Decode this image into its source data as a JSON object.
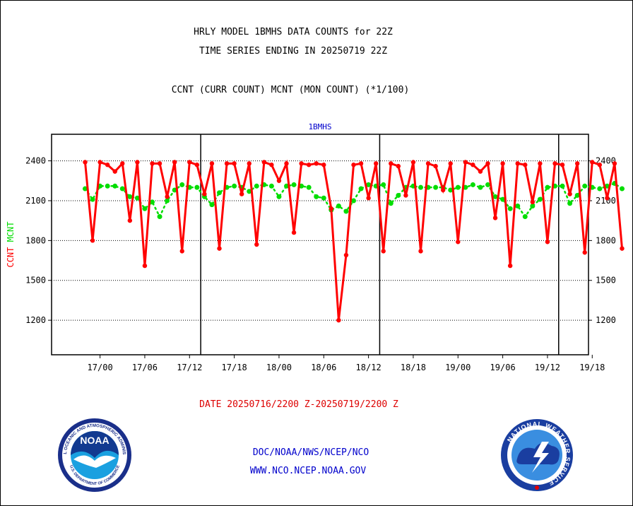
{
  "header": {
    "title_line1": "HRLY MODEL 1BMHS DATA COUNTS for 22Z",
    "title_line2": "TIME SERIES ENDING IN 20250719 22Z",
    "subtitle": "CCNT (CURR COUNT) MCNT (MON COUNT) (*1/100)"
  },
  "footer": {
    "date_range": "DATE 20250716/2200 Z-20250719/2200 Z",
    "org_path": "DOC/NOAA/NWS/NCEP/NCO",
    "website": "WWW.NCO.NCEP.NOAA.GOV"
  },
  "logos": {
    "noaa_text": "NOAA",
    "noaa_ring_text": "NATIONAL OCEANIC AND ATMOSPHERIC ADMINISTRATION",
    "noaa_ring_bottom": "U.S. DEPARTMENT OF COMMERCE",
    "nws_ring_text": "NATIONAL WEATHER SERVICE"
  },
  "colors": {
    "ccnt": "#ff0000",
    "mcnt": "#00dd00",
    "title_blue": "#0000cc",
    "footer_red": "#dd0000"
  },
  "chart_data": {
    "type": "line",
    "panel_title": "1BMHS",
    "ylabel_ccnt": "CCNT",
    "ylabel_mcnt": "MCNT",
    "ylim": [
      940,
      2600
    ],
    "yticks": [
      1200,
      1500,
      1800,
      2100,
      2400
    ],
    "hour_range": [
      -4.5,
      67.5
    ],
    "day_boundaries": [
      15.5,
      39.5,
      63.5
    ],
    "x_ticks": [
      {
        "h": 2,
        "label": "17/00"
      },
      {
        "h": 8,
        "label": "17/06"
      },
      {
        "h": 14,
        "label": "17/12"
      },
      {
        "h": 20,
        "label": "17/18"
      },
      {
        "h": 26,
        "label": "18/00"
      },
      {
        "h": 32,
        "label": "18/06"
      },
      {
        "h": 38,
        "label": "18/12"
      },
      {
        "h": 44,
        "label": "18/18"
      },
      {
        "h": 50,
        "label": "19/00"
      },
      {
        "h": 56,
        "label": "19/06"
      },
      {
        "h": 62,
        "label": "19/12"
      },
      {
        "h": 68,
        "label": "19/18"
      }
    ],
    "series": [
      {
        "name": "CCNT",
        "color": "#ff0000",
        "values": [
          2390,
          1800,
          2390,
          2370,
          2320,
          2380,
          1950,
          2390,
          1610,
          2380,
          2380,
          2130,
          2390,
          1720,
          2390,
          2370,
          2150,
          2380,
          1740,
          2380,
          2380,
          2150,
          2380,
          1770,
          2390,
          2370,
          2250,
          2380,
          1860,
          2380,
          2370,
          2380,
          2370,
          2040,
          1200,
          1690,
          2370,
          2380,
          2120,
          2380,
          1720,
          2380,
          2360,
          2140,
          2390,
          1720,
          2380,
          2360,
          2180,
          2380,
          1790,
          2390,
          2370,
          2320,
          2380,
          1970,
          2380,
          1610,
          2380,
          2370,
          2090,
          2380,
          1790,
          2380,
          2370,
          2150,
          2380,
          1710,
          2390,
          2370,
          2120,
          2380,
          1740
        ]
      },
      {
        "name": "MCNT",
        "color": "#00dd00",
        "values": [
          2190,
          2110,
          2210,
          2210,
          2210,
          2190,
          2130,
          2120,
          2040,
          2090,
          1980,
          2100,
          2180,
          2220,
          2200,
          2200,
          2130,
          2070,
          2160,
          2200,
          2210,
          2200,
          2170,
          2210,
          2220,
          2210,
          2130,
          2210,
          2220,
          2210,
          2200,
          2130,
          2120,
          2030,
          2060,
          2020,
          2100,
          2190,
          2220,
          2210,
          2220,
          2080,
          2140,
          2200,
          2210,
          2200,
          2200,
          2200,
          2200,
          2180,
          2200,
          2200,
          2220,
          2200,
          2220,
          2130,
          2110,
          2040,
          2060,
          1980,
          2060,
          2110,
          2200,
          2210,
          2210,
          2080,
          2140,
          2210,
          2200,
          2190,
          2210,
          2230,
          2190
        ]
      }
    ]
  }
}
